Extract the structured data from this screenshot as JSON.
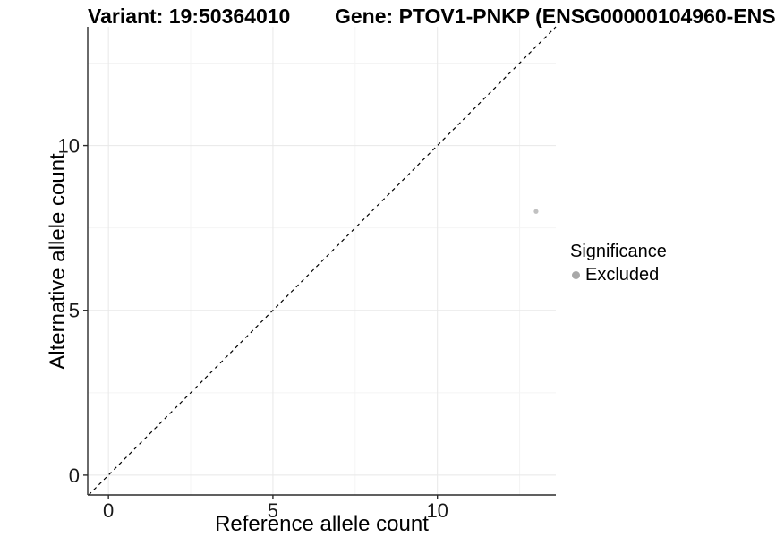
{
  "header": {
    "title_left": "Variant: 19:50364010",
    "title_right": "Gene: PTOV1-PNKP (ENSG00000104960-ENS"
  },
  "legend": {
    "title": "Significance",
    "items": [
      {
        "label": "Excluded",
        "color": "#a8a8a8"
      }
    ]
  },
  "chart_data": {
    "type": "scatter",
    "title": "Variant: 19:50364010  /  Gene: PTOV1-PNKP (ENSG00000104960-ENS",
    "xlabel": "Reference allele count",
    "ylabel": "Alternative allele count",
    "xlim": [
      -0.63,
      13.6
    ],
    "ylim": [
      -0.6,
      13.6
    ],
    "x_ticks": [
      0,
      5,
      10
    ],
    "y_ticks": [
      0,
      5,
      10
    ],
    "minor_gridlines": [
      2.5,
      7.5,
      12.5
    ],
    "grid": true,
    "legend_position": "right",
    "identity_line": {
      "style": "dashed",
      "equation": "y = x"
    },
    "series": [
      {
        "name": "Excluded",
        "color": "#c1c1c1",
        "points": [
          {
            "x": 13,
            "y": 8
          }
        ]
      }
    ]
  },
  "colors": {
    "background": "#ffffff",
    "axis": "#2b2b2b",
    "grid_major": "#e8e8e8",
    "grid_minor": "#f4f4f4",
    "identity_line": "#000000",
    "point": "#c1c1c1",
    "tick_text": "#1a1a1a"
  }
}
